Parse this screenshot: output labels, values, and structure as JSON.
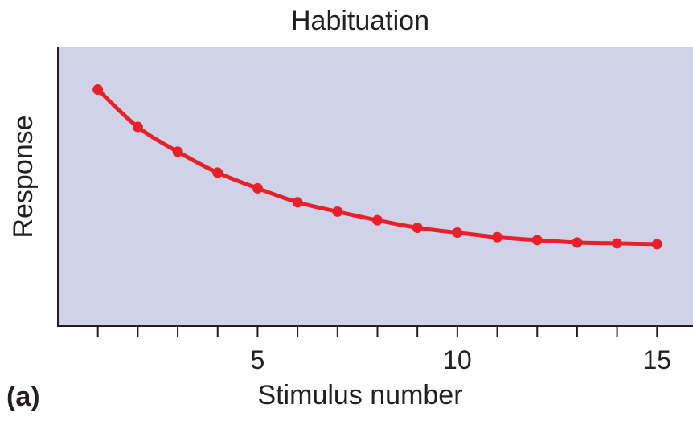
{
  "chart_data": {
    "type": "line",
    "title": "Habituation",
    "xlabel": "Stimulus number",
    "ylabel": "Response",
    "panel_label": "(a)",
    "x": [
      1,
      2,
      3,
      4,
      5,
      6,
      7,
      8,
      9,
      10,
      11,
      12,
      13,
      14,
      15
    ],
    "series": [
      {
        "values": [
          100,
          86.1,
          76.9,
          69.1,
          63.3,
          58.1,
          54.6,
          51.4,
          48.6,
          46.8,
          45.1,
          44.0,
          43.1,
          42.8,
          42.5
        ]
      }
    ],
    "xlim": [
      0,
      15.9
    ],
    "ylim": [
      12,
      116
    ],
    "xticks": [
      1,
      2,
      3,
      4,
      5,
      6,
      7,
      8,
      9,
      10,
      11,
      12,
      13,
      14,
      15
    ],
    "xtick_labels": [
      {
        "value": 5,
        "label": "5"
      },
      {
        "value": 10,
        "label": "10"
      },
      {
        "value": 15,
        "label": "15"
      }
    ],
    "grid": false,
    "legend": "none",
    "colors": {
      "plot_background": "#d0d3e8",
      "line": "#e8202a",
      "axis": "#231f20",
      "text": "#231f20"
    }
  }
}
